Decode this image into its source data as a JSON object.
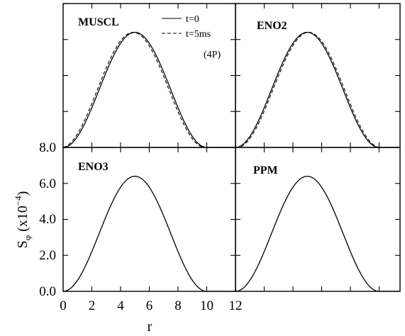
{
  "chart_data": {
    "type": "line",
    "layout": "2x2 grid of panels sharing axes",
    "xlabel": "r",
    "ylabel": {
      "base": "S",
      "sub": "φ",
      "rest": " (x10",
      "sup": "−4",
      "close": ")"
    },
    "xlim": [
      0,
      12
    ],
    "ylim": [
      0,
      8
    ],
    "x_ticks": [
      "0",
      "2",
      "4",
      "6",
      "8",
      "10",
      "12"
    ],
    "y_ticks": [
      "0.0",
      "2.0",
      "4.0",
      "6.0",
      "8.0"
    ],
    "legend": {
      "placement": "top of top-left panel",
      "entries": [
        {
          "label": "t=0",
          "style": "solid"
        },
        {
          "label": "t=5ms",
          "style": "dashed"
        }
      ]
    },
    "annotation": "(4P)",
    "curve_model": "S(r) = 6.4·sin(πr/10)² for 0≤r≤10, 0 otherwise",
    "series": [
      {
        "name": "t=0",
        "style": "solid",
        "x": [
          0,
          0.5,
          1,
          1.5,
          2,
          2.5,
          3,
          3.5,
          4,
          4.5,
          5,
          5.5,
          6,
          6.5,
          7,
          7.5,
          8,
          8.5,
          9,
          9.5,
          10,
          10.5,
          11,
          11.5,
          12
        ],
        "y": [
          0,
          0.157,
          0.611,
          1.314,
          2.212,
          3.2,
          4.188,
          5.086,
          5.789,
          6.243,
          6.4,
          6.243,
          5.789,
          5.086,
          4.188,
          3.2,
          2.212,
          1.314,
          0.611,
          0.157,
          0,
          0,
          0,
          0,
          0
        ]
      }
    ],
    "panels": [
      {
        "label": "MUSCL",
        "position": "top-left",
        "series": [
          "t=0",
          "t=5ms"
        ],
        "t5_shift": -0.12
      },
      {
        "label": "ENO2",
        "position": "top-right",
        "series": [
          "t=0",
          "t=5ms"
        ],
        "t5_shift": 0.1
      },
      {
        "label": "ENO3",
        "position": "bottom-left",
        "series": [
          "t=0"
        ]
      },
      {
        "label": "PPM",
        "position": "bottom-right",
        "series": [
          "t=0"
        ]
      }
    ]
  }
}
